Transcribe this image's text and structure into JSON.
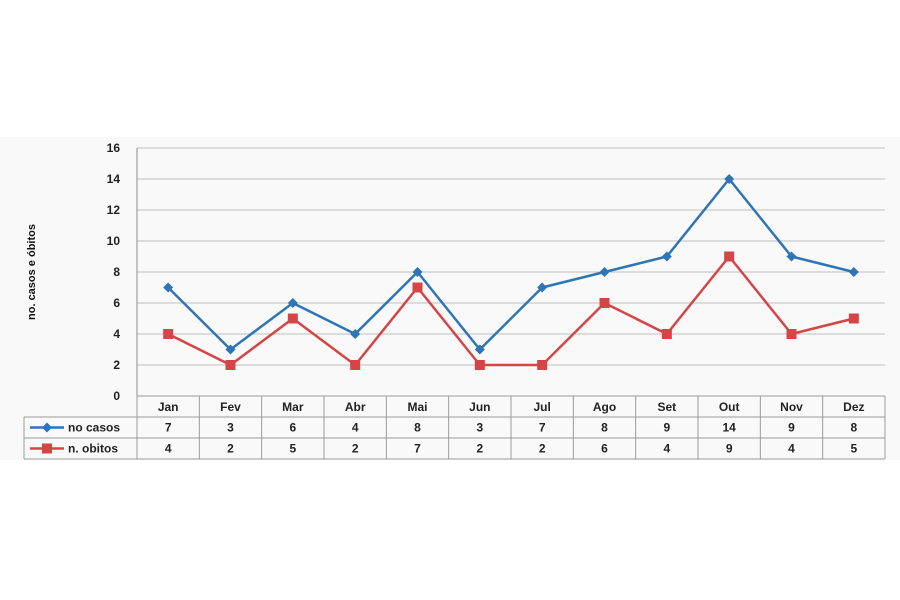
{
  "chart_data": {
    "type": "line",
    "title": "",
    "xlabel": "",
    "ylabel": "no. casos e óbitos",
    "ylim": [
      0,
      16
    ],
    "yticks": [
      0,
      2,
      4,
      6,
      8,
      10,
      12,
      14,
      16
    ],
    "grid": true,
    "legend": "data-table-left",
    "categories": [
      "Jan",
      "Fev",
      "Mar",
      "Abr",
      "Mai",
      "Jun",
      "Jul",
      "Ago",
      "Set",
      "Out",
      "Nov",
      "Dez"
    ],
    "series": [
      {
        "name": "no casos",
        "color": "#2e75b6",
        "marker": "diamond",
        "values": [
          7,
          3,
          6,
          4,
          8,
          3,
          7,
          8,
          9,
          14,
          9,
          8
        ]
      },
      {
        "name": "n. obitos",
        "color": "#d64545",
        "marker": "square",
        "values": [
          4,
          2,
          5,
          2,
          7,
          2,
          2,
          6,
          4,
          9,
          4,
          5
        ]
      }
    ]
  }
}
